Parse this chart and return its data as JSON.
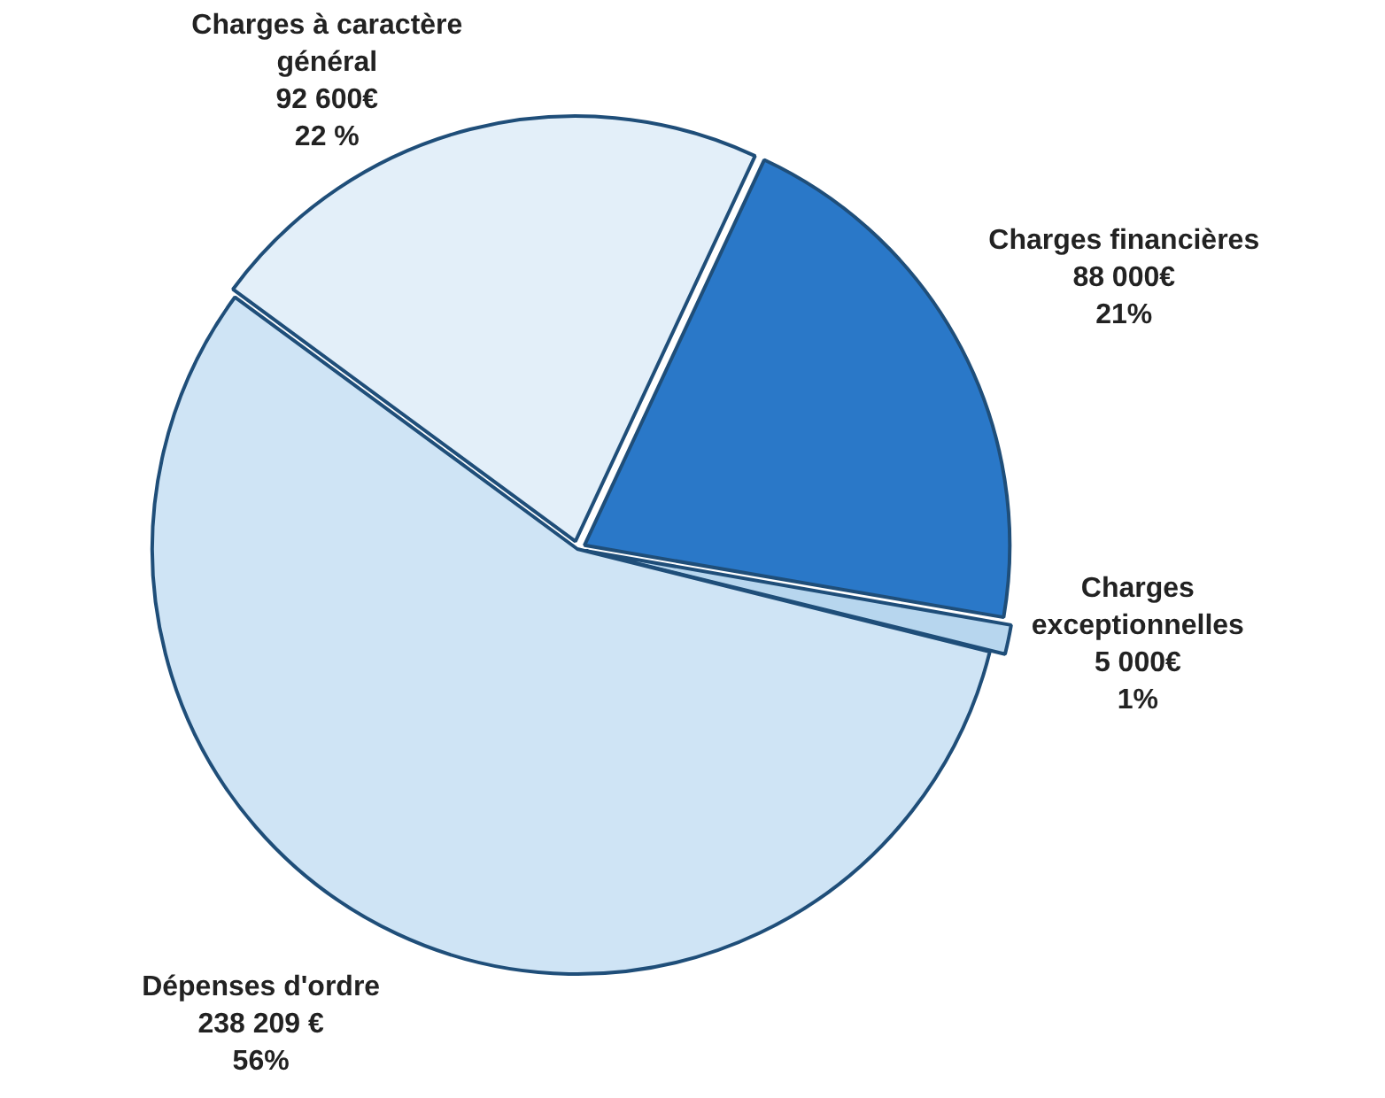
{
  "chart_data": {
    "type": "pie",
    "categories": [
      "Charges financières",
      "Charges exceptionnelles",
      "Dépenses d'ordre",
      "Charges à caractère général"
    ],
    "values": [
      88000,
      5000,
      238209,
      92600
    ],
    "colors": [
      "#2a78c8",
      "#b7d6ee",
      "#cfe4f5",
      "#e3eff9"
    ],
    "value_labels": [
      "88 000€\n21%",
      "5 000€\n1%",
      "238 209 €\n56%",
      "92 600€\n22 %"
    ],
    "legend": false
  }
}
